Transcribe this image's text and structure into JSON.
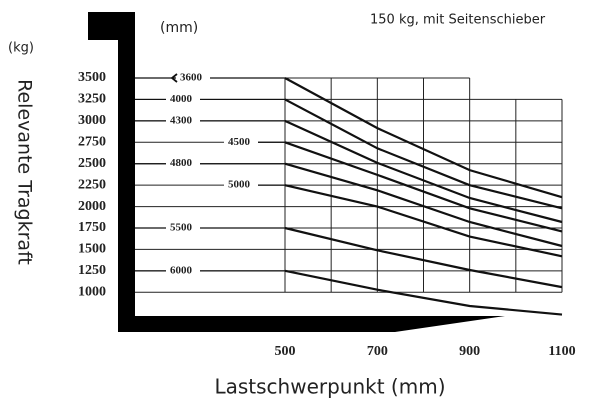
{
  "chart_data": {
    "type": "line",
    "title": "150 kg, mit Seitenschieber",
    "x_unit": "(mm)",
    "y_unit": "(kg)",
    "ylabel": "Relevante Tragkraft",
    "xlabel": "Lastschwerpunkt (mm)",
    "x": [
      500,
      700,
      900,
      1100
    ],
    "series": [
      {
        "name": "3600",
        "color": "#111111",
        "values": [
          3500,
          2915,
          2425,
          2110
        ]
      },
      {
        "name": "4000",
        "color": "#111111",
        "values": [
          3250,
          2680,
          2250,
          1980
        ]
      },
      {
        "name": "4300",
        "color": "#111111",
        "values": [
          3000,
          2510,
          2100,
          1820
        ]
      },
      {
        "name": "4500",
        "color": "#111111",
        "values": [
          2750,
          2370,
          1980,
          1710
        ]
      },
      {
        "name": "4800",
        "color": "#111111",
        "values": [
          2500,
          2190,
          1820,
          1540
        ]
      },
      {
        "name": "5000",
        "color": "#111111",
        "values": [
          2250,
          2000,
          1650,
          1420
        ]
      },
      {
        "name": "5500",
        "color": "#111111",
        "values": [
          1750,
          1490,
          1260,
          1060
        ]
      },
      {
        "name": "6000",
        "color": "#111111",
        "values": [
          1250,
          1030,
          840,
          740
        ]
      }
    ],
    "xlim": [
      500,
      1100
    ],
    "xticks": [
      500,
      700,
      900,
      1100
    ],
    "ylim": [
      700,
      3500
    ],
    "yticks": [
      3500,
      3250,
      3000,
      2750,
      2500,
      2250,
      2000,
      1750,
      1500,
      1250,
      1000
    ],
    "grid": true
  }
}
